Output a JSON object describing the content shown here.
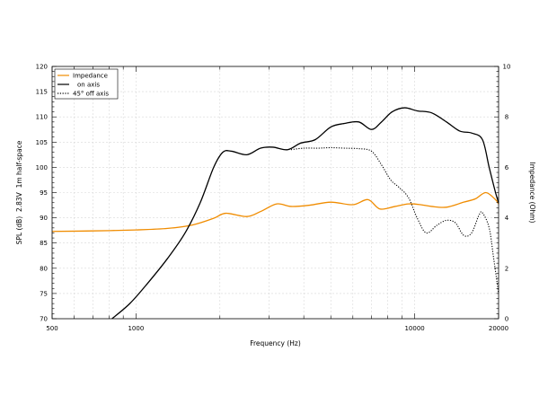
{
  "chart_data": {
    "type": "line",
    "title": "",
    "xlabel": "Frequency (Hz)",
    "ylabel_left": "SPL (dB)  2.83V  1m half-space",
    "ylabel_right": "Impedance (Ohm)",
    "x_scale": "log",
    "xlim": [
      500,
      20000
    ],
    "ylim_left": [
      70,
      120
    ],
    "ylim_right": [
      0,
      10
    ],
    "x_tick_labels": [
      "500",
      "1000",
      "10000",
      "20000"
    ],
    "x_tick_values": [
      500,
      1000,
      10000,
      20000
    ],
    "y_left_ticks": [
      "70",
      "75",
      "80",
      "85",
      "90",
      "95",
      "100",
      "105",
      "110",
      "115",
      "120"
    ],
    "y_right_ticks": [
      "0",
      "2",
      "4",
      "6",
      "8",
      "10"
    ],
    "grid": true,
    "legend": "top-left",
    "colors": {
      "impedance": "#f08c00",
      "on_axis": "#000000",
      "off_axis": "#000000"
    },
    "series": [
      {
        "name": "Impedance",
        "axis": "right",
        "style": "solid",
        "x": [
          500,
          700,
          1000,
          1300,
          1600,
          1900,
          2100,
          2500,
          2800,
          3200,
          3600,
          4200,
          5000,
          6000,
          6800,
          7500,
          8500,
          9500,
          10500,
          11500,
          13000,
          15000,
          16500,
          18000,
          19500,
          20000
        ],
        "y": [
          3.46,
          3.48,
          3.52,
          3.58,
          3.72,
          3.98,
          4.18,
          4.05,
          4.25,
          4.55,
          4.45,
          4.5,
          4.62,
          4.52,
          4.72,
          4.35,
          4.45,
          4.55,
          4.52,
          4.45,
          4.42,
          4.62,
          4.75,
          5.0,
          4.72,
          4.55
        ]
      },
      {
        "name": "on axis",
        "axis": "left",
        "style": "solid",
        "x": [
          820,
          950,
          1100,
          1300,
          1500,
          1700,
          1900,
          2050,
          2200,
          2500,
          2800,
          3100,
          3500,
          3900,
          4400,
          5000,
          5600,
          6300,
          7000,
          7600,
          8300,
          9200,
          10200,
          11500,
          13000,
          14500,
          16000,
          17500,
          18500,
          19500,
          20000
        ],
        "y": [
          70,
          73,
          77,
          82,
          87,
          93,
          100,
          103,
          103.2,
          102.5,
          103.8,
          104,
          103.5,
          104.8,
          105.5,
          108,
          108.7,
          109,
          107.5,
          109,
          111,
          111.8,
          111.2,
          110.8,
          109,
          107.2,
          106.8,
          105.5,
          100,
          95,
          93
        ]
      },
      {
        "name": "45° off axis",
        "axis": "left",
        "style": "dotted",
        "x": [
          3600,
          4000,
          4500,
          5000,
          5600,
          6300,
          7000,
          7600,
          8200,
          8800,
          9500,
          10200,
          11000,
          12000,
          13000,
          14000,
          15000,
          16000,
          17000,
          17500,
          18500,
          19200,
          20000
        ],
        "y": [
          103.5,
          103.8,
          103.8,
          103.9,
          103.8,
          103.7,
          103.2,
          100.5,
          97.5,
          96,
          94,
          90,
          87,
          88.5,
          89.5,
          89,
          86.5,
          87,
          90.5,
          91,
          88,
          82,
          75
        ]
      }
    ]
  }
}
